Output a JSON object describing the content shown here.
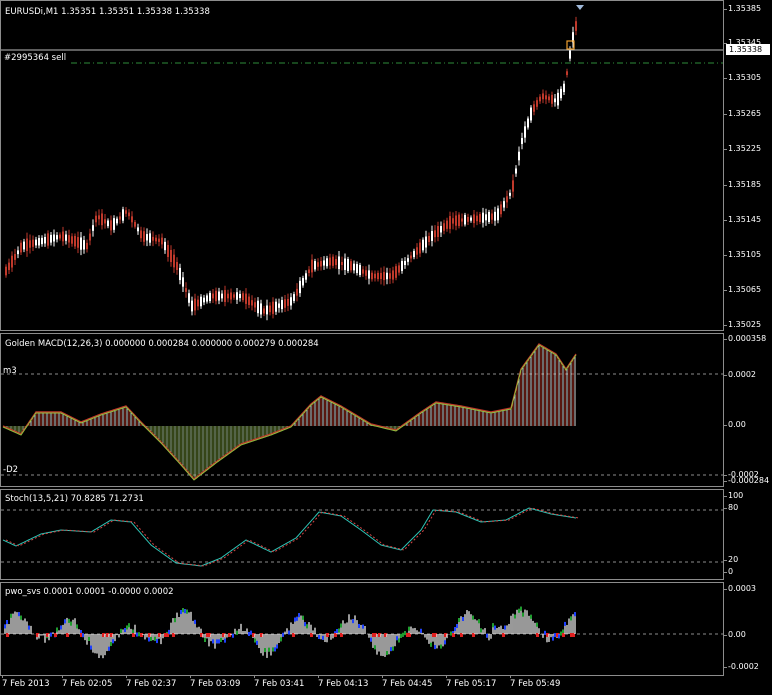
{
  "chart": {
    "title": "EURUSDi,M1  1.35351 1.35351 1.35338 1.35338",
    "order_label": "#2995364 sell",
    "current_price": "1.35338",
    "price_ticks": [
      "1.35385",
      "1.35345",
      "1.35305",
      "1.35265",
      "1.35225",
      "1.35185",
      "1.35145",
      "1.35105",
      "1.35065",
      "1.35025"
    ],
    "colors": {
      "bull": "#ffffff",
      "bear": "#c0392b",
      "order_line": "#2e8b3a",
      "grid": "#8c8c8c"
    }
  },
  "macd": {
    "title": "Golden MACD(12,26,3) 0.000000 0.000284 0.000000 0.000279 0.000284",
    "level_top": "m3",
    "level_bottom": "-D2",
    "ticks": [
      "0.000358",
      "0.0002",
      "0.00",
      "-0.0002",
      "-0.000284"
    ]
  },
  "stoch": {
    "title": "Stoch(13,5,21) 70.8285 71.2731",
    "ticks": [
      "100",
      "80",
      "20",
      "0"
    ]
  },
  "pwo": {
    "title": "pwo_svs 0.0001 0.0001 -0.0000 0.0002",
    "ticks": [
      "0.0003",
      "0.00",
      "-0.0002"
    ]
  },
  "time_axis": [
    "7 Feb 2013",
    "7 Feb 02:05",
    "7 Feb 02:37",
    "7 Feb 03:09",
    "7 Feb 03:41",
    "7 Feb 04:13",
    "7 Feb 04:45",
    "7 Feb 05:17",
    "7 Feb 05:49"
  ]
}
